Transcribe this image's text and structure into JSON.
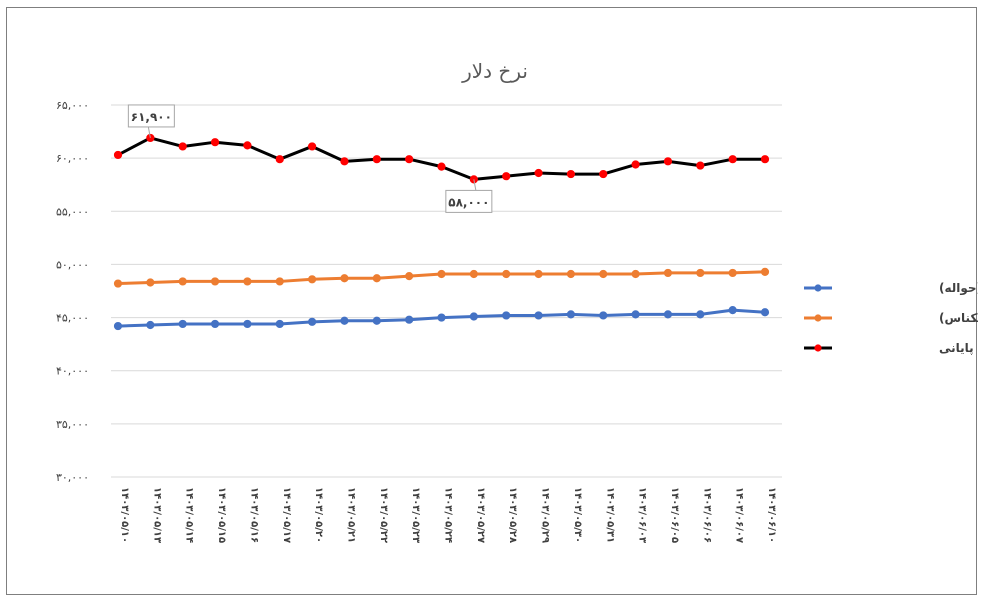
{
  "chart_data": {
    "type": "line",
    "title": "نرخ دلار",
    "xlabel": "",
    "ylabel": "",
    "ylim": [
      30000,
      65000
    ],
    "ytick_labels": [
      "۳۰,۰۰۰",
      "۳۵,۰۰۰",
      "۴۰,۰۰۰",
      "۴۵,۰۰۰",
      "۵۰,۰۰۰",
      "۵۵,۰۰۰",
      "۶۰,۰۰۰",
      "۶۵,۰۰۰"
    ],
    "ytick_values": [
      30000,
      35000,
      40000,
      45000,
      50000,
      55000,
      60000,
      65000
    ],
    "grid": true,
    "legend_position": "right",
    "categories": [
      "۱۴۰۳/۰۵/۱۰",
      "۱۴۰۳/۰۵/۱۳",
      "۱۴۰۳/۰۵/۱۴",
      "۱۴۰۳/۰۵/۱۵",
      "۱۴۰۳/۰۵/۱۶",
      "۱۴۰۳/۰۵/۱۷",
      "۱۴۰۳/۰۵/۲۰",
      "۱۴۰۳/۰۵/۲۱",
      "۱۴۰۳/۰۵/۲۲",
      "۱۴۰۳/۰۵/۲۳",
      "۱۴۰۳/۰۵/۲۴",
      "۱۴۰۳/۰۵/۲۷",
      "۱۴۰۳/۰۵/۲۸",
      "۱۴۰۳/۰۵/۲۹",
      "۱۴۰۳/۰۵/۳۰",
      "۱۴۰۳/۰۵/۳۱",
      "۱۴۰۳/۰۶/۰۳",
      "۱۴۰۳/۰۶/۰۵",
      "۱۴۰۳/۰۶/۰۶",
      "۱۴۰۳/۰۶/۰۷",
      "۱۴۰۳/۰۶/۱۰"
    ],
    "series": [
      {
        "name": "میانگین(حواله)",
        "color": "#4472c4",
        "marker_color": "#4472c4",
        "values": [
          44200,
          44300,
          44400,
          44400,
          44400,
          44400,
          44600,
          44700,
          44700,
          44800,
          45000,
          45100,
          45200,
          45200,
          45300,
          45200,
          45300,
          45300,
          45300,
          45700,
          45500
        ]
      },
      {
        "name": "میانگین(اسکناس)",
        "color": "#ed7d31",
        "marker_color": "#ed7d31",
        "values": [
          48200,
          48300,
          48400,
          48400,
          48400,
          48400,
          48600,
          48700,
          48700,
          48900,
          49100,
          49100,
          49100,
          49100,
          49100,
          49100,
          49100,
          49200,
          49200,
          49200,
          49300
        ]
      },
      {
        "name": "بازار آزاد - پایانی",
        "color": "#000000",
        "marker_color": "#ff0000",
        "values": [
          60300,
          61900,
          61100,
          61500,
          61200,
          59900,
          61100,
          59700,
          59900,
          59900,
          59200,
          58000,
          58300,
          58600,
          58500,
          58500,
          59400,
          59700,
          59300,
          59900,
          59900
        ]
      }
    ],
    "annotations": [
      {
        "series": 2,
        "index": 1,
        "text": "۶۱,۹۰۰",
        "position": "above"
      },
      {
        "series": 2,
        "index": 11,
        "text": "۵۸,۰۰۰",
        "position": "below"
      }
    ]
  }
}
